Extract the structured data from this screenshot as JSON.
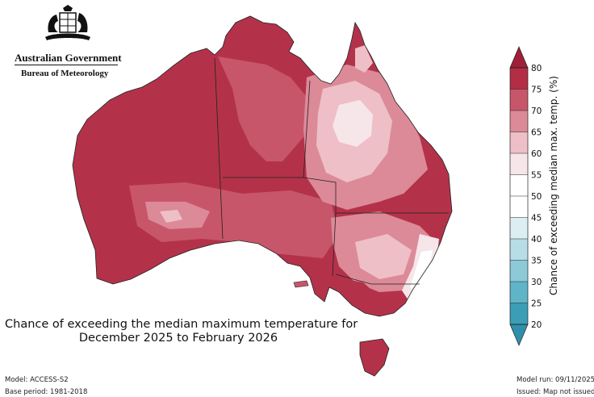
{
  "header": {
    "organisation": "Australian Government",
    "agency": "Bureau of Meteorology"
  },
  "map": {
    "title_line1": "Chance of exceeding the median maximum temperature for",
    "title_line2": "December 2025 to February 2026"
  },
  "colorbar": {
    "label": "Chance of exceeding median max. temp. (%)",
    "ticks": [
      "80",
      "75",
      "70",
      "65",
      "60",
      "55",
      "50",
      "45",
      "40",
      "35",
      "30",
      "25",
      "20"
    ],
    "colors": [
      "#b32d45",
      "#c8566a",
      "#dc8a98",
      "#eebfc7",
      "#f6e6e9",
      "#ffffff",
      "#ffffff",
      "#ddeef2",
      "#b7dde6",
      "#8ccad8",
      "#5fb4c8",
      "#3b9db6"
    ]
  },
  "footer": {
    "model": "Model: ACCESS-S2",
    "base_period": "Base period: 1981-2018",
    "model_run": "Model run: 09/11/2025",
    "issued": "Issued: Map not issued"
  }
}
